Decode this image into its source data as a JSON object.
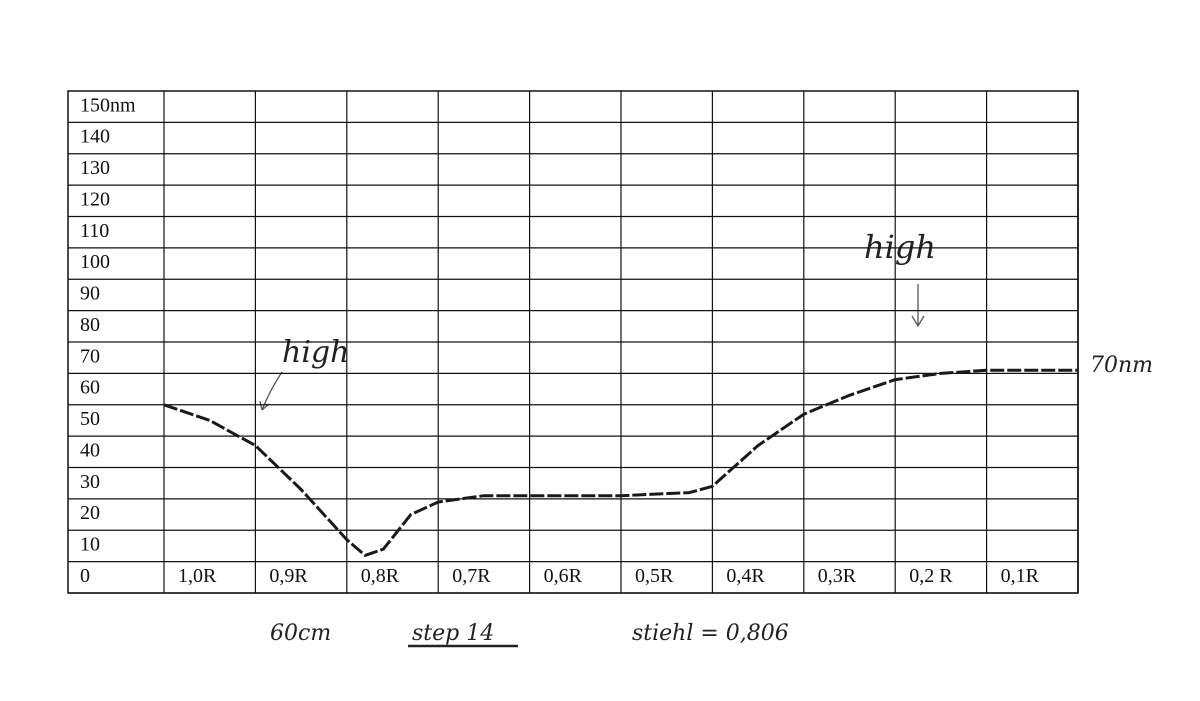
{
  "chart_data": {
    "type": "line",
    "x": [
      1.0,
      0.95,
      0.9,
      0.85,
      0.8,
      0.78,
      0.76,
      0.73,
      0.7,
      0.65,
      0.6,
      0.5,
      0.425,
      0.4,
      0.35,
      0.3,
      0.25,
      0.2,
      0.15,
      0.1,
      0.0
    ],
    "series": [
      {
        "color": "#1a1a1a",
        "values": [
          60,
          55,
          47,
          33,
          17,
          12,
          14,
          25,
          29,
          31,
          31,
          31,
          32,
          34,
          47,
          57,
          63,
          68,
          70,
          71,
          71
        ]
      }
    ],
    "xlim": [
      1.0,
      0.0
    ],
    "xticks": [
      {
        "value": 1.0,
        "label": "1,0R"
      },
      {
        "value": 0.9,
        "label": "0,9R"
      },
      {
        "value": 0.8,
        "label": "0,8R"
      },
      {
        "value": 0.7,
        "label": "0,7R"
      },
      {
        "value": 0.6,
        "label": "0,6R"
      },
      {
        "value": 0.5,
        "label": "0,5R"
      },
      {
        "value": 0.4,
        "label": "0,4R"
      },
      {
        "value": 0.3,
        "label": "0,3R"
      },
      {
        "value": 0.2,
        "label": "0,2 R"
      },
      {
        "value": 0.1,
        "label": "0,1R"
      }
    ],
    "ylim": [
      0,
      160
    ],
    "yticks": [
      0,
      10,
      20,
      30,
      40,
      50,
      60,
      70,
      80,
      90,
      100,
      110,
      120,
      130,
      140,
      {
        "value": 150,
        "label": "150nm"
      }
    ],
    "grid": true,
    "annotations": [
      "high",
      "high",
      "70nm",
      "60cm",
      "step 14",
      "stiehl = 0,806"
    ]
  }
}
